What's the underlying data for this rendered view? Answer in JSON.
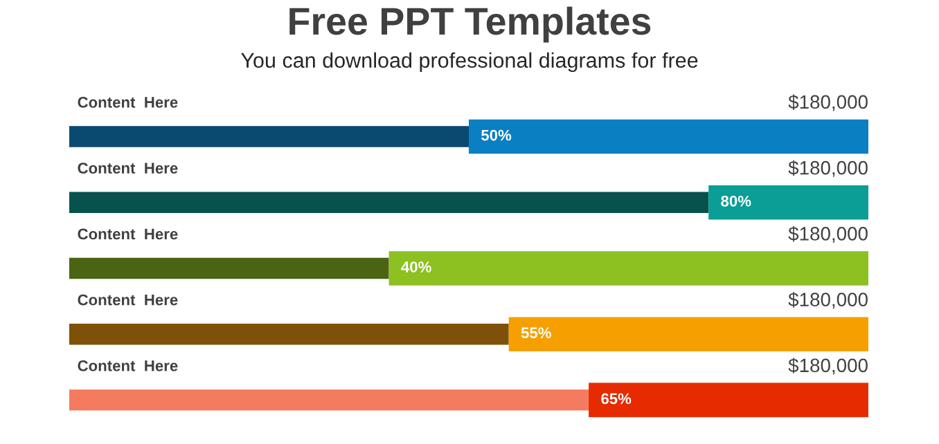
{
  "chart_data": {
    "type": "bar",
    "orientation": "horizontal",
    "stacked": true,
    "title": "Free PPT Templates",
    "subtitle": "You can download professional diagrams for free",
    "categories": [
      "Content  Here",
      "Content  Here",
      "Content  Here",
      "Content  Here",
      "Content  Here"
    ],
    "series": [
      {
        "colors": [
          "#0b4a70",
          "#08524e",
          "#4a6413",
          "#7f5108",
          "#f47a60"
        ],
        "values": [
          50,
          80,
          40,
          55,
          65
        ],
        "value_labels": [
          "50%",
          "80%",
          "40%",
          "55%",
          "65%"
        ]
      },
      {
        "colors": [
          "#0a7fc2",
          "#0a9e96",
          "#8dc021",
          "#f5a000",
          "#e62b00"
        ],
        "values": [
          50,
          20,
          60,
          45,
          35
        ]
      }
    ],
    "annotations": [
      "$180,000",
      "$180,000",
      "$180,000",
      "$180,000",
      "$180,000"
    ],
    "xlim": [
      0,
      100
    ],
    "legend": false
  }
}
